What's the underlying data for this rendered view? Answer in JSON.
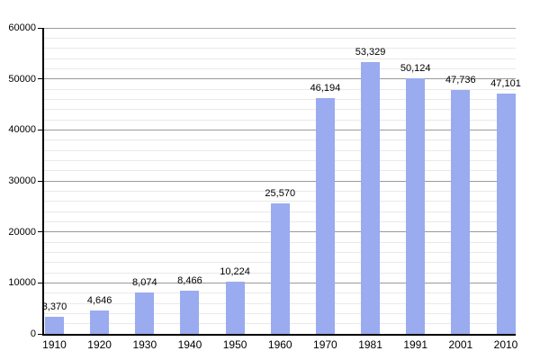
{
  "chart_data": {
    "type": "bar",
    "title": "",
    "xlabel": "",
    "ylabel": "",
    "categories": [
      "1910",
      "1920",
      "1930",
      "1940",
      "1950",
      "1960",
      "1970",
      "1981",
      "1991",
      "2001",
      "2010"
    ],
    "values": [
      3370,
      4646,
      8074,
      8466,
      10224,
      25570,
      46194,
      53329,
      50124,
      47736,
      47101
    ],
    "value_labels": [
      "3,370",
      "4,646",
      "8,074",
      "8,466",
      "10,224",
      "25,570",
      "46,194",
      "53,329",
      "50,124",
      "47,736",
      "47,101"
    ],
    "ylim": [
      0,
      60000
    ],
    "y_major_step": 10000,
    "y_minor_step": 2000,
    "y_tick_labels": [
      "0",
      "10000",
      "20000",
      "30000",
      "40000",
      "50000",
      "60000"
    ],
    "grid": "on",
    "legend": "none",
    "colors": {
      "bar_fill": "#9aabf0",
      "major_gridline": "#9a9a9a",
      "minor_gridline": "#e9e9e9",
      "axis": "#000000",
      "text": "#000000",
      "background": "#ffffff"
    }
  }
}
